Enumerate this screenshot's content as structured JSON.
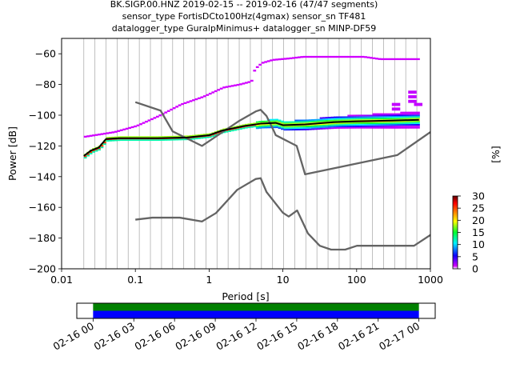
{
  "figure": {
    "title_lines": [
      "BK.SIGP.00.HNZ   2019-02-15 -- 2019-02-16  (47/47 segments)",
      "sensor_type FortisDCto100Hz(4gmax) sensor_sn TF481",
      "datalogger_type GuralpMinimus+ datalogger_sn MINP-DF59"
    ]
  },
  "chart_data": [
    {
      "type": "heatmap",
      "subtype": "probabilistic-power-spectral-density",
      "xlabel": "Period [s]",
      "ylabel": "Power [dB]",
      "xscale": "log",
      "xlim": [
        0.01,
        1000
      ],
      "ylim": [
        -200,
        -50
      ],
      "x_ticks": [
        0.01,
        0.1,
        1,
        10,
        100,
        1000
      ],
      "x_tick_labels": [
        "0.01",
        "0.1",
        "1",
        "10",
        "100",
        "1000"
      ],
      "y_ticks": [
        -200,
        -180,
        -160,
        -140,
        -120,
        -100,
        -80,
        -60
      ],
      "y_tick_labels": [
        "−200",
        "−180",
        "−160",
        "−140",
        "−120",
        "−100",
        "−80",
        "−60"
      ],
      "grid": "vertical lines at period bins",
      "colorbar": {
        "label": "[%]",
        "range": [
          0,
          30
        ],
        "ticks": [
          0,
          5,
          10,
          15,
          20,
          25,
          30
        ],
        "tick_labels": [
          "0",
          "5",
          "10",
          "15",
          "20",
          "25",
          "30"
        ],
        "colormap": [
          "#ffffff",
          "#d000ff",
          "#1000ff",
          "#00f0ff",
          "#00ff30",
          "#ffff00",
          "#ff8000",
          "#ff0000",
          "#600000"
        ]
      },
      "series": [
        {
          "role": "upper-envelope-reference",
          "color": "#646464",
          "points": [
            [
              0.1,
              -91.5
            ],
            [
              0.22,
              -97.0
            ],
            [
              0.32,
              -110.5
            ],
            [
              0.8,
              -120.0
            ],
            [
              2.5,
              -104.0
            ],
            [
              4.3,
              -97.5
            ],
            [
              5.0,
              -96.5
            ],
            [
              6.0,
              -100.5
            ],
            [
              7.5,
              -110.0
            ],
            [
              8.0,
              -113.0
            ],
            [
              15.4,
              -120.0
            ],
            [
              20.0,
              -138.5
            ],
            [
              354.8,
              -126.0
            ],
            [
              1000,
              -111.0
            ]
          ]
        },
        {
          "role": "lower-envelope-reference",
          "color": "#646464",
          "points": [
            [
              0.1,
              -168.0
            ],
            [
              0.17,
              -166.7
            ],
            [
              0.4,
              -166.7
            ],
            [
              0.8,
              -169.2
            ],
            [
              1.24,
              -163.7
            ],
            [
              2.4,
              -148.6
            ],
            [
              4.3,
              -141.5
            ],
            [
              5.0,
              -141.0
            ],
            [
              6.0,
              -150.0
            ],
            [
              10.0,
              -163.5
            ],
            [
              12.0,
              -166.0
            ],
            [
              15.6,
              -162.0
            ],
            [
              21.9,
              -177.0
            ],
            [
              31.6,
              -185.0
            ],
            [
              45.0,
              -187.5
            ],
            [
              70.0,
              -187.5
            ],
            [
              101.0,
              -185.0
            ],
            [
              178.0,
              -185.0
            ],
            [
              600.0,
              -185.0
            ],
            [
              1000,
              -178.0
            ]
          ]
        },
        {
          "role": "mode-line",
          "color": "#000000",
          "points": [
            [
              0.02,
              -126.5
            ],
            [
              0.025,
              -123.0
            ],
            [
              0.032,
              -121.0
            ],
            [
              0.04,
              -115.5
            ],
            [
              0.06,
              -115.0
            ],
            [
              0.1,
              -115.0
            ],
            [
              0.2,
              -115.0
            ],
            [
              0.5,
              -114.5
            ],
            [
              1.0,
              -113.0
            ],
            [
              1.5,
              -110.0
            ],
            [
              3.0,
              -107.0
            ],
            [
              5.0,
              -105.5
            ],
            [
              8.0,
              -105.0
            ],
            [
              10.0,
              -106.5
            ],
            [
              20.0,
              -106.0
            ],
            [
              50.0,
              -104.5
            ],
            [
              100.0,
              -104.0
            ],
            [
              300.0,
              -103.5
            ],
            [
              700.0,
              -103.0
            ]
          ]
        },
        {
          "role": "high-tail",
          "color": "#c000ff",
          "points": [
            [
              0.02,
              -114.0
            ],
            [
              0.05,
              -111.0
            ],
            [
              0.1,
              -107.0
            ],
            [
              0.2,
              -100.5
            ],
            [
              0.4,
              -93.0
            ],
            [
              0.8,
              -88.0
            ],
            [
              1.5,
              -82.0
            ],
            [
              2.5,
              -80.0
            ],
            [
              3.6,
              -78.0
            ],
            [
              4.0,
              -70.0
            ],
            [
              5.0,
              -66.0
            ],
            [
              7.0,
              -64.0
            ],
            [
              12.0,
              -63.0
            ],
            [
              18.0,
              -62.0
            ],
            [
              70.0,
              -62.0
            ],
            [
              120.0,
              -62.0
            ],
            [
              200.0,
              -63.5
            ],
            [
              700.0,
              -63.5
            ]
          ]
        }
      ]
    },
    {
      "type": "bar",
      "subtype": "data-coverage-timeline",
      "x_tick_labels": [
        "02-16 00",
        "02-16 03",
        "02-16 06",
        "02-16 09",
        "02-16 12",
        "02-16 15",
        "02-16 18",
        "02-16 21",
        "02-17 00"
      ],
      "x_range_hours": [
        -1.2,
        25.2
      ],
      "series": [
        {
          "role": "data-coverage",
          "color": "#008000",
          "start_hour": 0,
          "end_hour": 24
        },
        {
          "role": "psd-segments",
          "color": "#0000ff",
          "start_hour": 0,
          "end_hour": 24
        }
      ]
    }
  ]
}
